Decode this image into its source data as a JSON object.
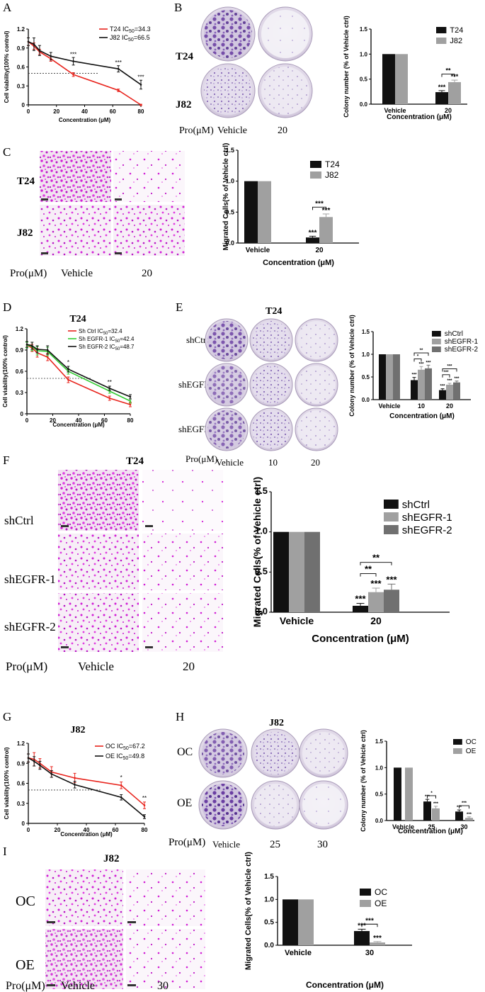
{
  "panels": {
    "A": {
      "letter": "A",
      "chart_data": {
        "type": "line",
        "xlabel": "Concentration (μM)",
        "ylabel": "Cell viability(100% control)",
        "xlim": [
          0,
          80
        ],
        "ylim": [
          0,
          1.2
        ],
        "xticks": [
          "0",
          "20",
          "40",
          "60",
          "80"
        ],
        "yticks": [
          "0",
          "0.3",
          "0.6",
          "0.9",
          "1.2"
        ],
        "ic50_ref": 0.5,
        "series": [
          {
            "name": "T24",
            "ic50": "34.3",
            "color": "#e8231c",
            "x": [
              0,
              4,
              8,
              16,
              32,
              64,
              80
            ],
            "y": [
              1.0,
              0.93,
              0.84,
              0.73,
              0.48,
              0.23,
              0.0
            ],
            "err": [
              0.06,
              0.05,
              0.04,
              0.04,
              0.03,
              0.02,
              0.01
            ]
          },
          {
            "name": "J82",
            "ic50": "66.5",
            "color": "#111111",
            "x": [
              0,
              4,
              8,
              16,
              32,
              64,
              80
            ],
            "y": [
              1.0,
              0.96,
              0.86,
              0.77,
              0.69,
              0.57,
              0.32
            ],
            "err": [
              0.06,
              0.1,
              0.08,
              0.06,
              0.06,
              0.05,
              0.07
            ]
          }
        ],
        "annotations": [
          {
            "x": 32,
            "y": 0.77,
            "text": "***"
          },
          {
            "x": 64,
            "y": 0.64,
            "text": "***"
          },
          {
            "x": 80,
            "y": 0.41,
            "text": "***"
          }
        ]
      }
    },
    "B": {
      "letter": "B",
      "images": {
        "rows": [
          "T24",
          "J82"
        ],
        "pro_label": "Pro(μM)",
        "conditions": [
          "Vehicle",
          "20"
        ]
      },
      "chart_data": {
        "type": "bar",
        "categories": [
          "Vehicle",
          "20"
        ],
        "xlabel": "Concentration (μM)",
        "ylabel": "Colony number (% of Vehicle ctrl)",
        "ylim": [
          0,
          1.5
        ],
        "yticks": [
          "0.0",
          "0.5",
          "1.0",
          "1.5"
        ],
        "series": [
          {
            "name": "T24",
            "color": "#111111",
            "values": [
              1.0,
              0.24
            ],
            "err": [
              0,
              0.03
            ]
          },
          {
            "name": "J82",
            "color": "#a0a0a0",
            "values": [
              1.0,
              0.44
            ],
            "err": [
              0,
              0.04
            ]
          }
        ],
        "stars": [
          {
            "cat": 1,
            "ser": 0,
            "text": "***"
          },
          {
            "cat": 1,
            "ser": 1,
            "text": "***"
          }
        ],
        "brackets": [
          {
            "cat": 1,
            "from": 0,
            "to": 1,
            "y": 0.6,
            "text": "**"
          }
        ]
      }
    },
    "C": {
      "letter": "C",
      "images": {
        "rows": [
          "T24",
          "J82"
        ],
        "pro_label": "Pro(μM)",
        "conditions": [
          "Vehicle",
          "20"
        ]
      },
      "chart_data": {
        "type": "bar",
        "categories": [
          "Vehicle",
          "20"
        ],
        "xlabel": "Concentration (μM)",
        "ylabel": "Migrated Cells(% of Vehicle ctrl)",
        "ylim": [
          0,
          1.5
        ],
        "yticks": [
          "0.0",
          "0.5",
          "1.0",
          "1.5"
        ],
        "series": [
          {
            "name": "T24",
            "color": "#111111",
            "values": [
              1.0,
              0.09
            ],
            "err": [
              0,
              0.02
            ]
          },
          {
            "name": "J82",
            "color": "#a0a0a0",
            "values": [
              1.0,
              0.42
            ],
            "err": [
              0,
              0.05
            ]
          }
        ],
        "stars": [
          {
            "cat": 1,
            "ser": 0,
            "text": "***"
          },
          {
            "cat": 1,
            "ser": 1,
            "text": "***"
          }
        ],
        "brackets": [
          {
            "cat": 1,
            "from": 0,
            "to": 1,
            "y": 0.58,
            "text": "***"
          }
        ]
      }
    },
    "D": {
      "letter": "D",
      "chart_data": {
        "type": "line",
        "title": "T24",
        "xlabel": "Concentration (μM)",
        "ylabel": "Cell viability(100% control)",
        "xlim": [
          0,
          80
        ],
        "ylim": [
          0,
          1.2
        ],
        "xticks": [
          "0",
          "20",
          "40",
          "60",
          "80"
        ],
        "yticks": [
          "0",
          "0.3",
          "0.6",
          "0.9",
          "1.2"
        ],
        "ic50_ref": 0.5,
        "series": [
          {
            "name": "Sh Ctrl",
            "ic50": "32.4",
            "color": "#e8231c",
            "x": [
              0,
              4,
              8,
              16,
              32,
              64,
              80
            ],
            "y": [
              0.97,
              0.93,
              0.86,
              0.8,
              0.48,
              0.22,
              0.13
            ],
            "err": [
              0.04,
              0.05,
              0.06,
              0.05,
              0.04,
              0.03,
              0.03
            ]
          },
          {
            "name": "Sh EGFR-1",
            "ic50": "42.4",
            "color": "#33cc33",
            "x": [
              0,
              4,
              8,
              16,
              32,
              64,
              80
            ],
            "y": [
              0.97,
              0.95,
              0.89,
              0.88,
              0.6,
              0.32,
              0.18
            ],
            "err": [
              0.04,
              0.06,
              0.06,
              0.06,
              0.04,
              0.03,
              0.03
            ]
          },
          {
            "name": "Sh EGFR-2",
            "ic50": "48.7",
            "color": "#111111",
            "x": [
              0,
              4,
              8,
              16,
              32,
              64,
              80
            ],
            "y": [
              0.98,
              0.96,
              0.91,
              0.9,
              0.63,
              0.36,
              0.24
            ],
            "err": [
              0.04,
              0.05,
              0.05,
              0.06,
              0.04,
              0.03,
              0.03
            ]
          }
        ],
        "annotations": [
          {
            "x": 32,
            "y": 0.7,
            "text": "*"
          },
          {
            "x": 64,
            "y": 0.42,
            "text": "**"
          }
        ]
      }
    },
    "E": {
      "letter": "E",
      "images": {
        "title": "T24",
        "rows": [
          "shCtrl",
          "shEGFR-1",
          "shEGFR-2"
        ],
        "pro_label": "Pro(μM)",
        "conditions": [
          "Vehicle",
          "10",
          "20"
        ]
      },
      "chart_data": {
        "type": "bar",
        "categories": [
          "Vehicle",
          "10",
          "20"
        ],
        "xlabel": "Concentration (μM)",
        "ylabel": "Colony number (% of Vehicle ctrl)",
        "ylim": [
          0,
          1.5
        ],
        "yticks": [
          "0.0",
          "0.5",
          "1.0",
          "1.5"
        ],
        "series": [
          {
            "name": "shCtrl",
            "color": "#111111",
            "values": [
              1.0,
              0.43,
              0.21
            ],
            "err": [
              0,
              0.06,
              0.03
            ]
          },
          {
            "name": "shEGFR-1",
            "color": "#a0a0a0",
            "values": [
              1.0,
              0.66,
              0.33
            ],
            "err": [
              0,
              0.07,
              0.03
            ]
          },
          {
            "name": "shEGFR-2",
            "color": "#707070",
            "values": [
              1.0,
              0.69,
              0.38
            ],
            "err": [
              0,
              0.07,
              0.03
            ]
          }
        ],
        "stars": [
          {
            "cat": 1,
            "ser": 0,
            "text": "***"
          },
          {
            "cat": 1,
            "ser": 1,
            "text": "***"
          },
          {
            "cat": 1,
            "ser": 2,
            "text": "***"
          },
          {
            "cat": 2,
            "ser": 0,
            "text": "***"
          },
          {
            "cat": 2,
            "ser": 1,
            "text": "***"
          },
          {
            "cat": 2,
            "ser": 2,
            "text": "***"
          }
        ],
        "brackets": [
          {
            "cat": 1,
            "from": 0,
            "to": 1,
            "y": 0.9,
            "text": "*"
          },
          {
            "cat": 1,
            "from": 0,
            "to": 2,
            "y": 1.03,
            "text": "**"
          },
          {
            "cat": 2,
            "from": 0,
            "to": 1,
            "y": 0.55,
            "text": "***"
          },
          {
            "cat": 2,
            "from": 0,
            "to": 2,
            "y": 0.68,
            "text": "***"
          }
        ]
      }
    },
    "F": {
      "letter": "F",
      "images": {
        "title": "T24",
        "rows": [
          "shCtrl",
          "shEGFR-1",
          "shEGFR-2"
        ],
        "pro_label": "Pro(μM)",
        "conditions": [
          "Vehicle",
          "20"
        ]
      },
      "chart_data": {
        "type": "bar",
        "categories": [
          "Vehicle",
          "20"
        ],
        "xlabel": "Concentration (μM)",
        "ylabel": "Migrated Cells(% of Vehicle ctrl)",
        "ylim": [
          0,
          1.5
        ],
        "yticks": [
          "0.0",
          "0.5",
          "1.0",
          "1.5"
        ],
        "series": [
          {
            "name": "shCtrl",
            "color": "#111111",
            "values": [
              1.0,
              0.08
            ],
            "err": [
              0,
              0.03
            ]
          },
          {
            "name": "shEGFR-1",
            "color": "#a0a0a0",
            "values": [
              1.0,
              0.25
            ],
            "err": [
              0,
              0.05
            ]
          },
          {
            "name": "shEGFR-2",
            "color": "#707070",
            "values": [
              1.0,
              0.28
            ],
            "err": [
              0,
              0.07
            ]
          }
        ],
        "stars": [
          {
            "cat": 1,
            "ser": 0,
            "text": "***"
          },
          {
            "cat": 1,
            "ser": 1,
            "text": "***"
          },
          {
            "cat": 1,
            "ser": 2,
            "text": "***"
          }
        ],
        "brackets": [
          {
            "cat": 1,
            "from": 0,
            "to": 1,
            "y": 0.48,
            "text": "**"
          },
          {
            "cat": 1,
            "from": 0,
            "to": 2,
            "y": 0.62,
            "text": "**"
          }
        ]
      }
    },
    "G": {
      "letter": "G",
      "chart_data": {
        "type": "line",
        "title": "J82",
        "xlabel": "Concentration (μM)",
        "ylabel": "Cell viability(100% control)",
        "xlim": [
          0,
          80
        ],
        "ylim": [
          0,
          1.2
        ],
        "xticks": [
          "0",
          "20",
          "40",
          "60",
          "80"
        ],
        "yticks": [
          "0",
          "0.3",
          "0.6",
          "0.9",
          "1.2"
        ],
        "ic50_ref": 0.5,
        "series": [
          {
            "name": "OC",
            "ic50": "67.2",
            "color": "#e8231c",
            "x": [
              0,
              4,
              8,
              16,
              32,
              64,
              80
            ],
            "y": [
              0.98,
              0.96,
              0.9,
              0.77,
              0.68,
              0.57,
              0.27
            ],
            "err": [
              0.06,
              0.1,
              0.07,
              0.08,
              0.07,
              0.05,
              0.05
            ]
          },
          {
            "name": "OE",
            "ic50": "49.8",
            "color": "#111111",
            "x": [
              0,
              4,
              8,
              16,
              32,
              64,
              80
            ],
            "y": [
              0.98,
              0.93,
              0.87,
              0.74,
              0.58,
              0.39,
              0.1
            ],
            "err": [
              0.06,
              0.07,
              0.06,
              0.05,
              0.05,
              0.04,
              0.03
            ]
          }
        ],
        "annotations": [
          {
            "x": 64,
            "y": 0.66,
            "text": "*"
          },
          {
            "x": 80,
            "y": 0.35,
            "text": "**"
          }
        ]
      }
    },
    "H": {
      "letter": "H",
      "images": {
        "title": "J82",
        "rows": [
          "OC",
          "OE"
        ],
        "pro_label": "Pro(μM)",
        "conditions": [
          "Vehicle",
          "25",
          "30"
        ]
      },
      "chart_data": {
        "type": "bar",
        "categories": [
          "Vehicle",
          "25",
          "30"
        ],
        "xlabel": "Concentration (μM)",
        "ylabel": "Colony number (% of Vehicle ctrl)",
        "ylim": [
          0,
          1.5
        ],
        "yticks": [
          "0.0",
          "0.5",
          "1.0",
          "1.5"
        ],
        "series": [
          {
            "name": "OC",
            "color": "#111111",
            "values": [
              1.0,
              0.36,
              0.17
            ],
            "err": [
              0,
              0.04,
              0.03
            ]
          },
          {
            "name": "OE",
            "color": "#a0a0a0",
            "values": [
              1.0,
              0.23,
              0.05
            ],
            "err": [
              0,
              0.04,
              0.02
            ]
          }
        ],
        "stars": [
          {
            "cat": 1,
            "ser": 0,
            "text": "***"
          },
          {
            "cat": 1,
            "ser": 1,
            "text": "***"
          },
          {
            "cat": 2,
            "ser": 0,
            "text": "***"
          },
          {
            "cat": 2,
            "ser": 1,
            "text": "***"
          }
        ],
        "brackets": [
          {
            "cat": 1,
            "from": 0,
            "to": 1,
            "y": 0.47,
            "text": "*"
          },
          {
            "cat": 2,
            "from": 0,
            "to": 1,
            "y": 0.28,
            "text": "***"
          }
        ]
      }
    },
    "I": {
      "letter": "I",
      "images": {
        "title": "J82",
        "rows": [
          "OC",
          "OE"
        ],
        "pro_label": "Pro(μM)",
        "conditions": [
          "Vehicle",
          "30"
        ]
      },
      "chart_data": {
        "type": "bar",
        "categories": [
          "Vehicle",
          "30"
        ],
        "xlabel": "Concentration (μM)",
        "ylabel": "Migrated Cells(% of Vehicle ctrl)",
        "ylim": [
          0,
          1.5
        ],
        "yticks": [
          "0.0",
          "0.5",
          "1.0",
          "1.5"
        ],
        "series": [
          {
            "name": "OC",
            "color": "#111111",
            "values": [
              1.0,
              0.31
            ],
            "err": [
              0,
              0.04
            ]
          },
          {
            "name": "OE",
            "color": "#a0a0a0",
            "values": [
              1.0,
              0.06
            ],
            "err": [
              0,
              0.02
            ]
          }
        ],
        "stars": [
          {
            "cat": 1,
            "ser": 0,
            "text": "***"
          },
          {
            "cat": 1,
            "ser": 1,
            "text": "***"
          }
        ],
        "brackets": [
          {
            "cat": 1,
            "from": 0,
            "to": 1,
            "y": 0.46,
            "text": "***"
          }
        ]
      }
    }
  }
}
